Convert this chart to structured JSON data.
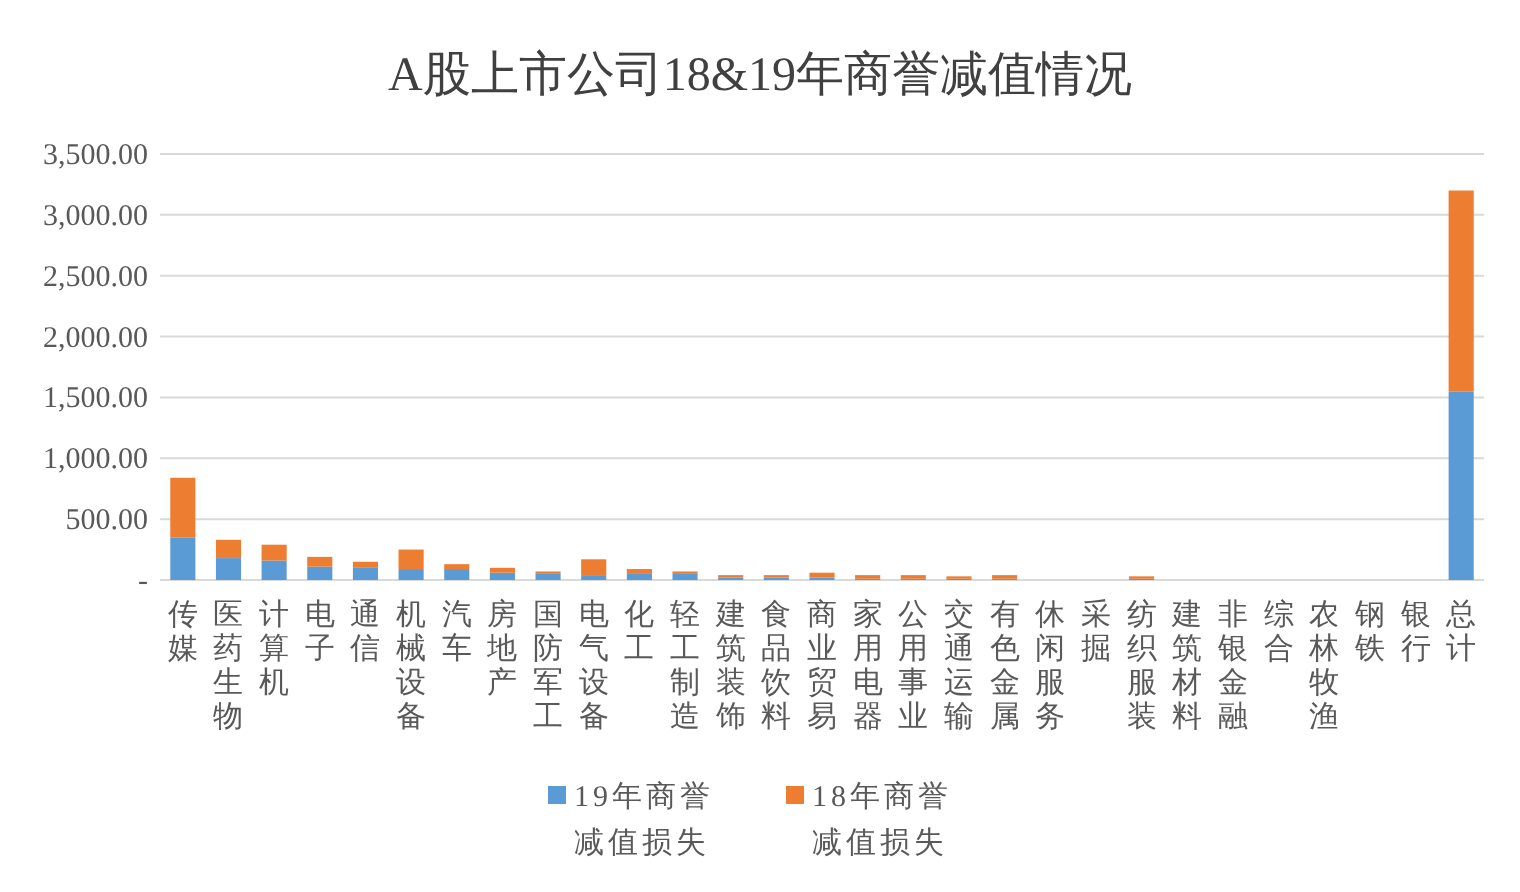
{
  "chart_data": {
    "type": "bar",
    "title": "A股上市公司18&19年商誉减值情况",
    "categories": [
      "传媒",
      "医药生物",
      "计算机",
      "电子",
      "通信",
      "机械设备",
      "汽车",
      "房地产",
      "国防军工",
      "电气设备",
      "化工",
      "轻工制造",
      "建筑装饰",
      "食品饮料",
      "商业贸易",
      "家用电器",
      "公用事业",
      "交通运输",
      "有色金属",
      "休闲服务",
      "采掘",
      "纺织服装",
      "建筑材料",
      "非银金融",
      "综合",
      "农林牧渔",
      "钢铁",
      "银行",
      "总计"
    ],
    "stacked": true,
    "series": [
      {
        "name": "19年商誉减值损失",
        "color": "#5b9bd5",
        "values": [
          350,
          180,
          160,
          110,
          100,
          90,
          90,
          60,
          50,
          40,
          50,
          50,
          20,
          20,
          20,
          10,
          10,
          10,
          10,
          0,
          0,
          10,
          0,
          0,
          0,
          0,
          0,
          0,
          1550
        ]
      },
      {
        "name": "18年商誉减值损失",
        "color": "#ed7d31",
        "values": [
          490,
          150,
          130,
          80,
          50,
          160,
          40,
          40,
          20,
          130,
          40,
          20,
          20,
          20,
          40,
          30,
          30,
          20,
          30,
          0,
          0,
          20,
          0,
          0,
          0,
          0,
          0,
          0,
          1650
        ]
      }
    ],
    "ylim": [
      0,
      3500
    ],
    "yticks": [
      {
        "value": 0,
        "label": "-"
      },
      {
        "value": 500,
        "label": "500.00"
      },
      {
        "value": 1000,
        "label": "1,000.00"
      },
      {
        "value": 1500,
        "label": "1,500.00"
      },
      {
        "value": 2000,
        "label": "2,000.00"
      },
      {
        "value": 2500,
        "label": "2,500.00"
      },
      {
        "value": 3000,
        "label": "3,000.00"
      },
      {
        "value": 3500,
        "label": "3,500.00"
      }
    ],
    "grid": "y",
    "legend": "bottom"
  }
}
